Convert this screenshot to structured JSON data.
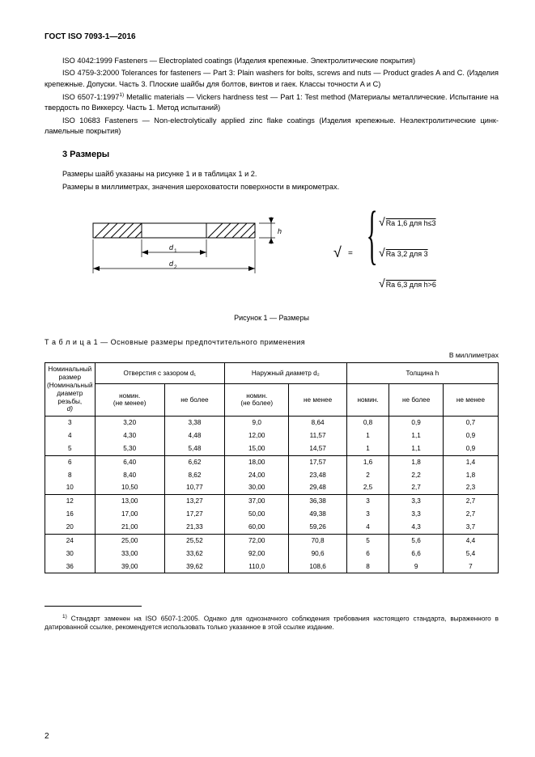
{
  "doc_header": "ГОСТ ISO 7093-1—2016",
  "refs": {
    "r1": "ISO 4042:1999 Fasteners — Electroplated coatings (Изделия крепежные. Электролитические покрытия)",
    "r2": "ISO 4759-3:2000 Tolerances for fasteners — Part 3: Plain washers for bolts, screws and nuts — Product grades A and C. (Изделия крепежные. Допуски. Часть 3. Плоские шайбы для болтов, винтов и гаек. Классы точности A и C)",
    "r3a": "ISO 6507-1:1997",
    "r3b": " Metallic materials — Vickers hardness test — Part 1: Test method (Материалы металлические. Испытание на твердость по Виккерсу. Часть 1. Метод испытаний)",
    "r4": "ISO 10683 Fasteners — Non-electrolytically applied zinc flake coatings (Изделия крепежные. Неэлектролитические цинк-ламельные покрытия)",
    "sup": "1)"
  },
  "section3": {
    "title": "3  Размеры",
    "p1": "Размеры шайб указаны на рисунке 1 и в таблицах 1 и 2.",
    "p2": "Размеры в миллиметрах, значения шероховатости поверхности в микрометрах."
  },
  "figure": {
    "d1": "d",
    "d1_sub": "1",
    "d2": "d",
    "d2_sub": "2",
    "h": "h",
    "ra1": "Ra 1,6   для h≤3",
    "ra2": "Ra 3,2   для 3<h≤6",
    "ra3": "Ra 6,3   для h>6",
    "caption": "Рисунок 1 — Размеры"
  },
  "table1": {
    "title": "Т а б л и ц а  1 — Основные размеры предпочтительного применения",
    "unit": "В миллиметрах",
    "headers": {
      "col1a": "Номинальный размер",
      "col1b": "(Номинальный диаметр резьбы,",
      "col1c": "d)",
      "g1": "Отверстия с зазором d₁",
      "g2": "Наружный диаметр d₂",
      "g3": "Толщина h",
      "nom_min": "номин.\n(не менее)",
      "not_more": "не более",
      "nom_max": "номин.\n(не более)",
      "not_less": "не менее",
      "nom": "номин."
    },
    "rows": [
      [
        "3",
        "3,20",
        "3,38",
        "9,0",
        "8,64",
        "0,8",
        "0,9",
        "0,7"
      ],
      [
        "4",
        "4,30",
        "4,48",
        "12,00",
        "11,57",
        "1",
        "1,1",
        "0,9"
      ],
      [
        "5",
        "5,30",
        "5,48",
        "15,00",
        "14,57",
        "1",
        "1,1",
        "0,9"
      ],
      [
        "6",
        "6,40",
        "6,62",
        "18,00",
        "17,57",
        "1,6",
        "1,8",
        "1,4"
      ],
      [
        "8",
        "8,40",
        "8,62",
        "24,00",
        "23,48",
        "2",
        "2,2",
        "1,8"
      ],
      [
        "10",
        "10,50",
        "10,77",
        "30,00",
        "29,48",
        "2,5",
        "2,7",
        "2,3"
      ],
      [
        "12",
        "13,00",
        "13,27",
        "37,00",
        "36,38",
        "3",
        "3,3",
        "2,7"
      ],
      [
        "16",
        "17,00",
        "17,27",
        "50,00",
        "49,38",
        "3",
        "3,3",
        "2,7"
      ],
      [
        "20",
        "21,00",
        "21,33",
        "60,00",
        "59,26",
        "4",
        "4,3",
        "3,7"
      ],
      [
        "24",
        "25,00",
        "25,52",
        "72,00",
        "70,8",
        "5",
        "5,6",
        "4,4"
      ],
      [
        "30",
        "33,00",
        "33,62",
        "92,00",
        "90,6",
        "6",
        "6,6",
        "5,4"
      ],
      [
        "36",
        "39,00",
        "39,62",
        "110,0",
        "108,6",
        "8",
        "9",
        "7"
      ]
    ],
    "group_breaks": [
      3,
      6,
      9
    ]
  },
  "footnote": {
    "sup": "1)",
    "text": " Стандарт заменен на ISO 6507-1:2005. Однако для однозначного соблюдения требования настоящего стандарта, выраженного в датированной ссылке, рекомендуется использовать только указанное в этой ссылке издание."
  },
  "pagenum": "2"
}
